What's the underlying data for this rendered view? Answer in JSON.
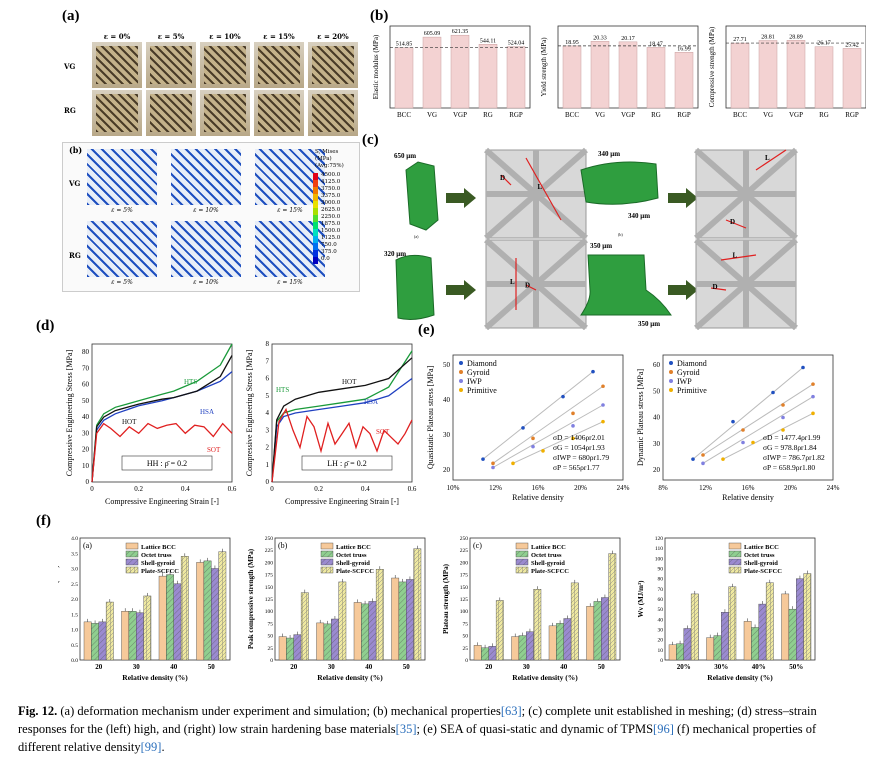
{
  "panel_labels": {
    "a": "(a)",
    "b": "(b)",
    "c": "(c)",
    "d": "(d)",
    "e": "(e)",
    "f": "(f)"
  },
  "panel_a": {
    "strain_labels": [
      "ε = 0%",
      "ε = 5%",
      "ε = 10%",
      "ε = 15%",
      "ε = 20%"
    ],
    "row_labels": [
      "VG",
      "RG"
    ],
    "sim_label": "(b)",
    "sim_row_labels": [
      "VG",
      "RG"
    ],
    "sim_strain_labels": [
      "ε = 5%",
      "ε = 10%",
      "ε = 15%"
    ],
    "legend_title": [
      "S, Mises",
      "(MPa)",
      "(Avg:75%)"
    ],
    "legend_values": [
      "4500.0",
      "4125.0",
      "3750.0",
      "3375.0",
      "3000.0",
      "2625.0",
      "2250.0",
      "1875.0",
      "1500.0",
      "1125.0",
      "750.0",
      "375.0",
      "0.0"
    ],
    "legend_colors": [
      "#e0001a",
      "#f04010",
      "#f07a00",
      "#f0b400",
      "#e8e000",
      "#a8e000",
      "#50e030",
      "#00e070",
      "#00e0c0",
      "#00b0f0",
      "#0070f0",
      "#0030e0",
      "#0000c0"
    ]
  },
  "panel_b": {
    "chart_data": [
      {
        "type": "bar",
        "ylabel": "Elastic modulus (MPa)",
        "categories": [
          "BCC",
          "VG",
          "VGP",
          "RG",
          "RGP"
        ],
        "values": [
          514.85,
          605.09,
          621.35,
          544.11,
          524.04
        ],
        "value_labels": [
          "514.85",
          "605.09",
          "621.35",
          "544.11",
          "524.04"
        ],
        "ylim": [
          0,
          700
        ],
        "dashed_ref": 514.85
      },
      {
        "type": "bar",
        "ylabel": "Yield strength (MPa)",
        "categories": [
          "BCC",
          "VG",
          "VGP",
          "RG",
          "RGP"
        ],
        "values": [
          18.95,
          20.33,
          20.17,
          18.47,
          16.99
        ],
        "value_labels": [
          "18.95",
          "20.33",
          "20.17",
          "18.47",
          "16.99"
        ],
        "ylim": [
          0,
          25
        ],
        "dashed_ref": 18.95
      },
      {
        "type": "bar",
        "ylabel": "Compressive strength (MPa)",
        "categories": [
          "BCC",
          "VG",
          "VGP",
          "RG",
          "RGP"
        ],
        "values": [
          27.71,
          28.81,
          28.89,
          26.17,
          25.42
        ],
        "value_labels": [
          "27.71",
          "28.81",
          "28.89",
          "26.17",
          "25.42"
        ],
        "ylim": [
          0,
          35
        ],
        "dashed_ref": 27.71
      }
    ]
  },
  "panel_c": {
    "dims": [
      "650 μm",
      "340 μm",
      "340 μm",
      "320 μm",
      "350 μm",
      "350 μm"
    ],
    "dim_letters": [
      "D",
      "L",
      "L",
      "D",
      "L",
      "D",
      "L",
      "D"
    ],
    "sub_labels": [
      "(a)",
      "(b)"
    ]
  },
  "panel_d": {
    "chart_data": [
      {
        "type": "line",
        "ylabel": "Compressive Engineering Stress [MPa]",
        "xlabel": "Compressive Engineering Strain [-]",
        "xticks": [
          "0",
          "0.2",
          "0.4",
          "0.6"
        ],
        "yticks": [
          "0",
          "10",
          "20",
          "30",
          "40",
          "50",
          "60",
          "70",
          "80"
        ],
        "xlim": [
          0,
          0.6
        ],
        "ylim": [
          0,
          85
        ],
        "box_label": "HH : ρ̄ = 0.2",
        "series": [
          {
            "name": "HTS",
            "color": "#1a9a3a",
            "x": [
              0,
              0.02,
              0.05,
              0.1,
              0.2,
              0.3,
              0.35,
              0.45,
              0.55,
              0.6
            ],
            "y": [
              0,
              35,
              42,
              46,
              50,
              54,
              56,
              62,
              72,
              85
            ]
          },
          {
            "name": "HSA",
            "color": "#2040c0",
            "x": [
              0,
              0.02,
              0.05,
              0.1,
              0.2,
              0.3,
              0.35,
              0.45,
              0.55,
              0.6
            ],
            "y": [
              0,
              32,
              38,
              42,
              47,
              50,
              52,
              56,
              62,
              68
            ]
          },
          {
            "name": "HOT",
            "color": "#111111",
            "x": [
              0,
              0.02,
              0.05,
              0.1,
              0.2,
              0.3,
              0.35,
              0.45,
              0.55,
              0.6
            ],
            "y": [
              0,
              34,
              40,
              44,
              48,
              51,
              52,
              56,
              65,
              78
            ]
          },
          {
            "name": "SOT",
            "color": "#e02020",
            "x": [
              0,
              0.02,
              0.05,
              0.08,
              0.12,
              0.16,
              0.2,
              0.24,
              0.28,
              0.32,
              0.36,
              0.4,
              0.44,
              0.48,
              0.52,
              0.56,
              0.6
            ],
            "y": [
              0,
              30,
              36,
              33,
              28,
              34,
              30,
              36,
              33,
              35,
              36,
              30,
              35,
              34,
              28,
              36,
              30
            ]
          }
        ]
      },
      {
        "type": "line",
        "ylabel": "Compressive Engineering Stress [MPa]",
        "xlabel": "Compressive Engineering Strain [-]",
        "xticks": [
          "0",
          "0.2",
          "0.4",
          "0.6"
        ],
        "yticks": [
          "0",
          "1",
          "2",
          "3",
          "4",
          "5",
          "6",
          "7",
          "8"
        ],
        "xlim": [
          0,
          0.6
        ],
        "ylim": [
          0,
          8
        ],
        "box_label": "LH : ρ̄ = 0.2",
        "series": [
          {
            "name": "HTS",
            "color": "#1a9a3a",
            "x": [
              0,
              0.02,
              0.05,
              0.1,
              0.2,
              0.3,
              0.4,
              0.5,
              0.6
            ],
            "y": [
              0,
              3.5,
              4,
              4.2,
              4.4,
              4.6,
              4.8,
              5.5,
              7.6
            ]
          },
          {
            "name": "HSA",
            "color": "#2040c0",
            "x": [
              0,
              0.02,
              0.05,
              0.1,
              0.2,
              0.3,
              0.4,
              0.5,
              0.6
            ],
            "y": [
              0,
              3.2,
              3.8,
              4,
              4.2,
              4.4,
              4.6,
              5,
              6
            ]
          },
          {
            "name": "HOT",
            "color": "#111111",
            "x": [
              0,
              0.02,
              0.05,
              0.1,
              0.2,
              0.3,
              0.4,
              0.5,
              0.6
            ],
            "y": [
              0,
              3.6,
              4.4,
              4.8,
              5.2,
              5.4,
              5.6,
              6,
              7.2
            ]
          },
          {
            "name": "SOT",
            "color": "#e02020",
            "x": [
              0,
              0.03,
              0.06,
              0.09,
              0.12,
              0.15,
              0.18,
              0.21,
              0.24,
              0.27,
              0.3,
              0.33,
              0.36,
              0.39,
              0.42,
              0.45,
              0.48,
              0.51,
              0.54,
              0.57,
              0.6
            ],
            "y": [
              0,
              3.5,
              4.2,
              3,
              2,
              3.8,
              3.2,
              1.8,
              3.4,
              2.2,
              2.8,
              3.4,
              2,
              3.2,
              2.8,
              1.8,
              3,
              2.6,
              2.2,
              2.8,
              3.6
            ]
          }
        ]
      }
    ]
  },
  "panel_e": {
    "chart_data": [
      {
        "type": "scatter",
        "ylabel": "Quasistatic Plateau stress [MPa]",
        "xlabel": "Relative density",
        "xticks": [
          "10%",
          "12%",
          "16%",
          "20%",
          "24%"
        ],
        "yticks": [
          "20",
          "30",
          "40",
          "50"
        ],
        "legend": [
          "Diamond",
          "Gyroid",
          "IWP",
          "Primitive"
        ],
        "equations": [
          "σD = 1406ρr2.01",
          "σG = 1054ρr1.93",
          "σIWP = 680ρr1.79",
          "σP = 565ρr1.77"
        ],
        "series": [
          {
            "name": "Diamond",
            "color": "#2050c0",
            "x": [
              0.11,
              0.15,
              0.19,
              0.22
            ],
            "y": [
              20,
              35,
              50,
              62
            ]
          },
          {
            "name": "Gyroid",
            "color": "#e0802a",
            "x": [
              0.12,
              0.16,
              0.2,
              0.23
            ],
            "y": [
              18,
              30,
              42,
              55
            ]
          },
          {
            "name": "IWP",
            "color": "#8080e0",
            "x": [
              0.12,
              0.16,
              0.2,
              0.23
            ],
            "y": [
              16,
              26,
              36,
              46
            ]
          },
          {
            "name": "Primitive",
            "color": "#f0b000",
            "x": [
              0.14,
              0.17,
              0.2,
              0.23
            ],
            "y": [
              18,
              24,
              30,
              38
            ]
          }
        ]
      },
      {
        "type": "scatter",
        "ylabel": "Dynamic Plateau stress [MPa]",
        "xlabel": "Relative density",
        "xticks": [
          "8%",
          "12%",
          "16%",
          "20%",
          "24%"
        ],
        "yticks": [
          "20",
          "30",
          "40",
          "50",
          "60"
        ],
        "legend": [
          "Diamond",
          "Gyroid",
          "IWP",
          "Primitive"
        ],
        "equations": [
          "σD = 1477.4ρr1.99",
          "σG = 978.8ρr1.84",
          "σIWP = 786.7ρr1.82",
          "σP = 658.9ρr1.80"
        ],
        "series": [
          {
            "name": "Diamond",
            "color": "#2050c0",
            "x": [
              0.11,
              0.15,
              0.19,
              0.22
            ],
            "y": [
              20,
              38,
              52,
              64
            ]
          },
          {
            "name": "Gyroid",
            "color": "#e0802a",
            "x": [
              0.12,
              0.16,
              0.2,
              0.23
            ],
            "y": [
              22,
              34,
              46,
              56
            ]
          },
          {
            "name": "IWP",
            "color": "#8080e0",
            "x": [
              0.12,
              0.16,
              0.2,
              0.23
            ],
            "y": [
              18,
              28,
              40,
              50
            ]
          },
          {
            "name": "Primitive",
            "color": "#f0b000",
            "x": [
              0.14,
              0.17,
              0.2,
              0.23
            ],
            "y": [
              20,
              28,
              34,
              42
            ]
          }
        ]
      }
    ]
  },
  "panel_f": {
    "legend": [
      "Lattice BCC",
      "Octet truss",
      "Shell-gyroid",
      "Plate-SCFCC"
    ],
    "chart_data": [
      {
        "type": "bar",
        "sub": "(a)",
        "ylabel": "Elastic modulus (GPa)",
        "xlabel": "Relative density (%)",
        "categories": [
          "20",
          "30",
          "40",
          "50"
        ],
        "yticks": [
          "0.0",
          "0.5",
          "1.0",
          "1.5",
          "2.0",
          "2.5",
          "3.0",
          "3.5",
          "4.0"
        ],
        "ylim": [
          0,
          4
        ],
        "series": [
          {
            "name": "Lattice BCC",
            "values": [
              1.25,
              1.6,
              2.75,
              3.2
            ]
          },
          {
            "name": "Octet truss",
            "values": [
              1.2,
              1.6,
              2.8,
              3.25
            ]
          },
          {
            "name": "Shell-gyroid",
            "values": [
              1.25,
              1.55,
              2.5,
              3.0
            ]
          },
          {
            "name": "Plate-SCFCC",
            "values": [
              1.9,
              2.1,
              3.4,
              3.55
            ]
          }
        ]
      },
      {
        "type": "bar",
        "sub": "(b)",
        "ylabel": "Peak compressive strength (MPa)",
        "xlabel": "Relative density (%)",
        "categories": [
          "20",
          "30",
          "40",
          "50"
        ],
        "yticks": [
          "0",
          "25",
          "50",
          "75",
          "100",
          "125",
          "150",
          "175",
          "200",
          "225",
          "250"
        ],
        "ylim": [
          0,
          250
        ],
        "series": [
          {
            "name": "Lattice BCC",
            "values": [
              48,
              76,
              118,
              168
            ]
          },
          {
            "name": "Octet truss",
            "values": [
              45,
              74,
              115,
              160
            ]
          },
          {
            "name": "Shell-gyroid",
            "values": [
              52,
              84,
              120,
              165
            ]
          },
          {
            "name": "Plate-SCFCC",
            "values": [
              138,
              160,
              186,
              228
            ]
          }
        ]
      },
      {
        "type": "bar",
        "sub": "(c)",
        "ylabel": "Plateau strength (MPa)",
        "xlabel": "Relative density (%)",
        "categories": [
          "20",
          "30",
          "40",
          "50"
        ],
        "yticks": [
          "0",
          "25",
          "50",
          "75",
          "100",
          "125",
          "150",
          "175",
          "200",
          "225",
          "250"
        ],
        "ylim": [
          0,
          250
        ],
        "series": [
          {
            "name": "Lattice BCC",
            "values": [
              30,
              48,
              70,
              110
            ]
          },
          {
            "name": "Octet truss",
            "values": [
              25,
              50,
              75,
              120
            ]
          },
          {
            "name": "Shell-gyroid",
            "values": [
              28,
              58,
              85,
              128
            ]
          },
          {
            "name": "Plate-SCFCC",
            "values": [
              122,
              145,
              158,
              218
            ]
          }
        ]
      },
      {
        "type": "bar",
        "sub": "",
        "ylabel": "Wv (MJ/m³)",
        "xlabel": "Relative density (%)",
        "categories": [
          "20%",
          "30%",
          "40%",
          "50%"
        ],
        "yticks": [
          "0",
          "10",
          "20",
          "30",
          "40",
          "50",
          "60",
          "70",
          "80",
          "90",
          "100",
          "110",
          "120"
        ],
        "ylim": [
          0,
          120
        ],
        "series": [
          {
            "name": "Lattice BCC",
            "values": [
              15,
              22,
              38,
              65
            ]
          },
          {
            "name": "Octet truss",
            "values": [
              16,
              24,
              32,
              50
            ]
          },
          {
            "name": "Shell-gyroid",
            "values": [
              31,
              47,
              55,
              80
            ]
          },
          {
            "name": "Plate-SCFCC",
            "values": [
              65,
              72,
              76,
              85
            ]
          }
        ]
      }
    ]
  },
  "caption": {
    "fig_label": "Fig. 12.",
    "text1": " (a) deformation mechanism under experiment and simulation; (b) mechanical properties",
    "ref1": "[63]",
    "text2": "; (c) complete unit established in meshing; (d) stress–strain responses for the (left) high, and (right) low strain hardening base materials",
    "ref2": "[35]",
    "text3": "; (e) SEA of quasi-static and dynamic of TPMS",
    "ref3": "[96]",
    "text4": " (f) mechanical properties of different relative density",
    "ref4": "[99]",
    "text5": "."
  }
}
